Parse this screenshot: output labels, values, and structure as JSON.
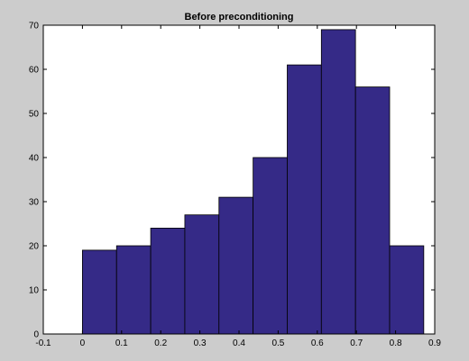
{
  "figure": {
    "background": "#cccccc",
    "axes_background": "#ffffff",
    "bar_color": "#352a87",
    "edge_color": "#000000"
  },
  "chart_data": {
    "type": "bar",
    "title": "Before preconditioning",
    "xlabel": "",
    "ylabel": "",
    "bin_edges": [
      0.0,
      0.0872,
      0.1744,
      0.2616,
      0.3488,
      0.436,
      0.5232,
      0.6104,
      0.6976,
      0.7848,
      0.872
    ],
    "values": [
      19,
      20,
      24,
      27,
      31,
      40,
      61,
      69,
      56,
      20
    ],
    "xlim": [
      -0.1,
      0.9
    ],
    "ylim": [
      0,
      70
    ],
    "xticks": [
      "-0.1",
      "0",
      "0.1",
      "0.2",
      "0.3",
      "0.4",
      "0.5",
      "0.6",
      "0.7",
      "0.8",
      "0.9"
    ],
    "yticks": [
      "0",
      "10",
      "20",
      "30",
      "40",
      "50",
      "60",
      "70"
    ],
    "grid": false,
    "legend": "none"
  }
}
